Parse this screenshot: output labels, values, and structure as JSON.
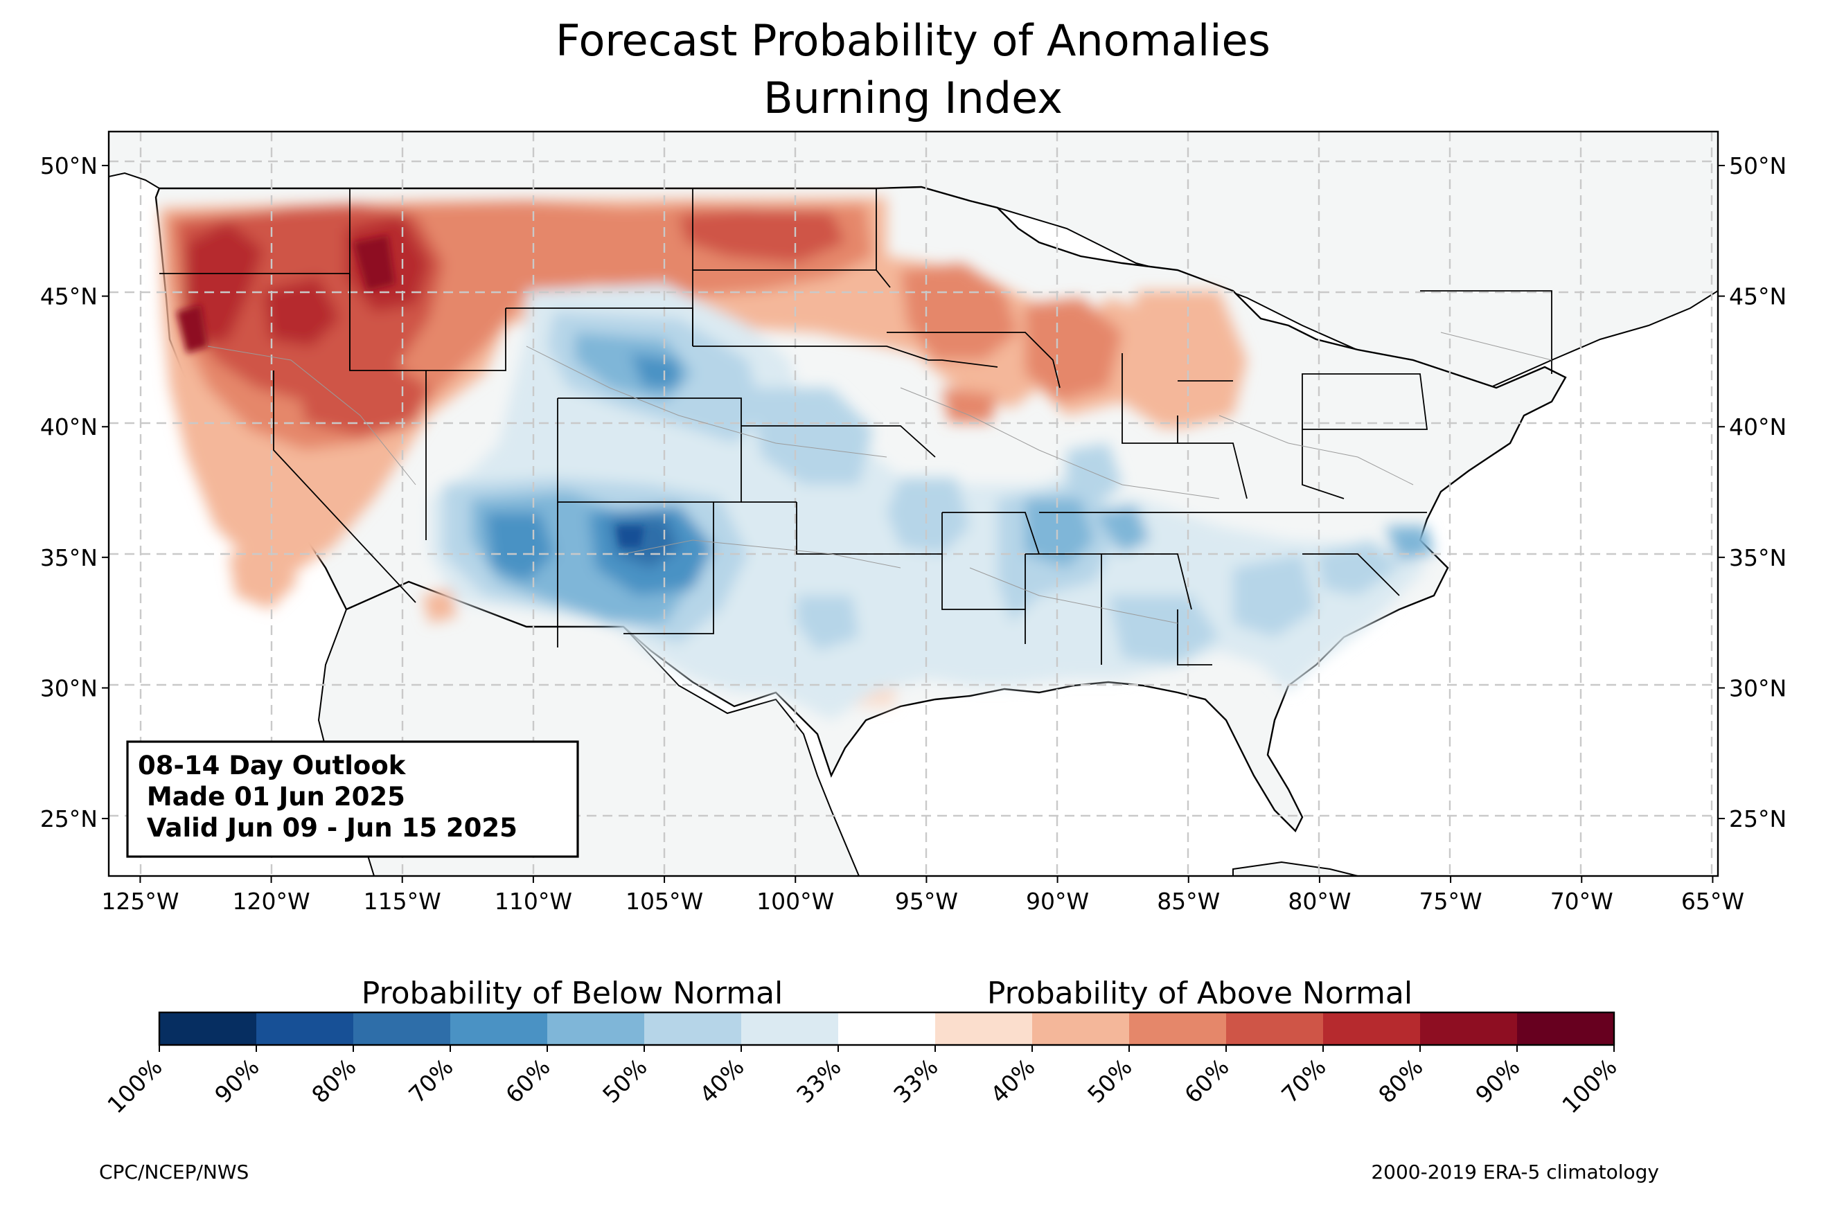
{
  "title": {
    "line1": "Forecast Probability of Anomalies",
    "line2": "Burning Index"
  },
  "map": {
    "region": "Contiguous United States",
    "lon_range": [
      -126.2,
      -64.8
    ],
    "lat_range": [
      22.8,
      51.3
    ],
    "lat_ticks": [
      "50°N",
      "45°N",
      "40°N",
      "35°N",
      "30°N",
      "25°N"
    ],
    "lon_ticks": [
      "125°W",
      "120°W",
      "115°W",
      "110°W",
      "105°W",
      "100°W",
      "95°W",
      "90°W",
      "85°W",
      "80°W",
      "75°W",
      "70°W",
      "65°W"
    ],
    "gridlines": true,
    "land_color": "#f4f6f6",
    "ocean_color": "#ffffff"
  },
  "chart_data": {
    "type": "heatmap",
    "x_label_units": "longitude",
    "y_label_units": "latitude",
    "categories_below": [
      "100%",
      "90%",
      "80%",
      "70%",
      "60%",
      "50%",
      "40%",
      "33%"
    ],
    "categories_above": [
      "33%",
      "40%",
      "50%",
      "60%",
      "70%",
      "80%",
      "90%",
      "100%"
    ],
    "regions": [
      {
        "category": "above",
        "level": "70-80%",
        "area": "Pacific Northwest (Oregon, Washington, Idaho)"
      },
      {
        "category": "above",
        "level": "50-70%",
        "area": "Northern Plains (Montana, North Dakota, South Dakota, Minnesota)"
      },
      {
        "category": "above",
        "level": "40-60%",
        "area": "Upper Midwest (Iowa, Wisconsin, Illinois, Michigan)"
      },
      {
        "category": "above",
        "level": "50-70%",
        "area": "Great Basin (Nevada, northern Utah, northern California)"
      },
      {
        "category": "below",
        "level": "60-80%",
        "area": "Southwest (New Mexico, Arizona, southern Colorado)"
      },
      {
        "category": "below",
        "level": "40-60%",
        "area": "Central Plains (Colorado, Kansas, Oklahoma, Wyoming)"
      },
      {
        "category": "below",
        "level": "40-60%",
        "area": "Lower Mississippi Valley and Southeast"
      }
    ]
  },
  "colorbar": {
    "below_label": "Probability of Below Normal",
    "above_label": "Probability of Above Normal",
    "tick_labels": [
      "100%",
      "90%",
      "80%",
      "70%",
      "60%",
      "50%",
      "40%",
      "33%",
      "33%",
      "40%",
      "50%",
      "60%",
      "70%",
      "80%",
      "90%",
      "100%"
    ],
    "colors": [
      "#062e61",
      "#175096",
      "#2e6ea9",
      "#4a92c4",
      "#7fb6d8",
      "#b6d5e8",
      "#dbeaf2",
      "#ffffff",
      "#fbdecd",
      "#f4b79a",
      "#e5876a",
      "#cf5547",
      "#b62a2e",
      "#8e0e22",
      "#67001f"
    ]
  },
  "info_box": {
    "line1": "08-14 Day Outlook",
    "line2": " Made 01 Jun 2025",
    "line3": " Valid Jun 09 - Jun 15 2025"
  },
  "credits": {
    "left": "CPC/NCEP/NWS",
    "right": "2000-2019 ERA-5 climatology"
  }
}
